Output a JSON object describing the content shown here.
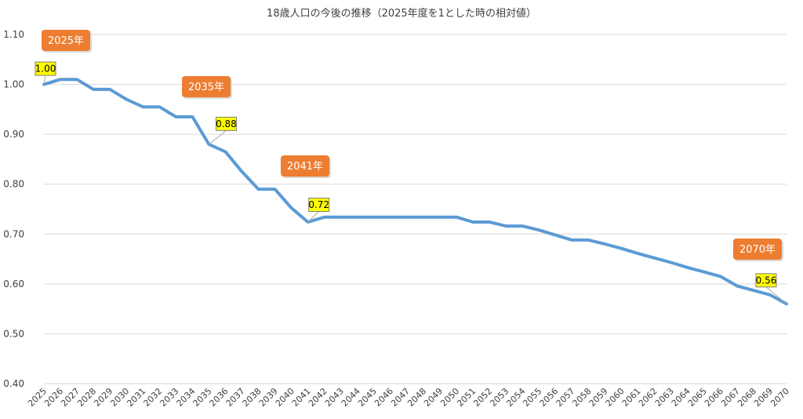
{
  "chart_data": {
    "type": "line",
    "title": "18歳人口の今後の推移（2025年度を1とした時の相対値）",
    "xlabel": "",
    "ylabel": "",
    "ylim": [
      0.4,
      1.1
    ],
    "yticks": [
      "0.40",
      "0.50",
      "0.60",
      "0.70",
      "0.80",
      "0.90",
      "1.00",
      "1.10"
    ],
    "grid": true,
    "legend": "none",
    "categories": [
      "2025",
      "2026",
      "2027",
      "2028",
      "2029",
      "2030",
      "2031",
      "2032",
      "2033",
      "2034",
      "2035",
      "2036",
      "2037",
      "2038",
      "2039",
      "2040",
      "2041",
      "2042",
      "2043",
      "2044",
      "2045",
      "2046",
      "2047",
      "2048",
      "2049",
      "2050",
      "2051",
      "2052",
      "2053",
      "2054",
      "2055",
      "2056",
      "2057",
      "2058",
      "2059",
      "2060",
      "2061",
      "2062",
      "2063",
      "2064",
      "2065",
      "2066",
      "2067",
      "2068",
      "2069",
      "2070"
    ],
    "series": [
      {
        "color": "#5b9bd5",
        "values": [
          1.0,
          1.01,
          1.01,
          0.99,
          0.99,
          0.97,
          0.955,
          0.955,
          0.935,
          0.935,
          0.88,
          0.865,
          0.825,
          0.79,
          0.79,
          0.752,
          0.724,
          0.734,
          0.734,
          0.734,
          0.734,
          0.734,
          0.734,
          0.734,
          0.734,
          0.734,
          0.724,
          0.724,
          0.716,
          0.716,
          0.708,
          0.698,
          0.688,
          0.688,
          0.68,
          0.671,
          0.661,
          0.652,
          0.643,
          0.633,
          0.624,
          0.615,
          0.596,
          0.587,
          0.578,
          0.56
        ]
      }
    ],
    "data_labels": [
      {
        "index": 0,
        "text": "1.00"
      },
      {
        "index": 10,
        "text": "0.88"
      },
      {
        "index": 16,
        "text": "0.72"
      },
      {
        "index": 45,
        "text": "0.56"
      }
    ],
    "callouts": [
      {
        "text": "2025年",
        "color": "#ed7d31"
      },
      {
        "text": "2035年",
        "color": "#ed7d31"
      },
      {
        "text": "2041年",
        "color": "#ed7d31"
      },
      {
        "text": "2070年",
        "color": "#ed7d31"
      }
    ]
  }
}
